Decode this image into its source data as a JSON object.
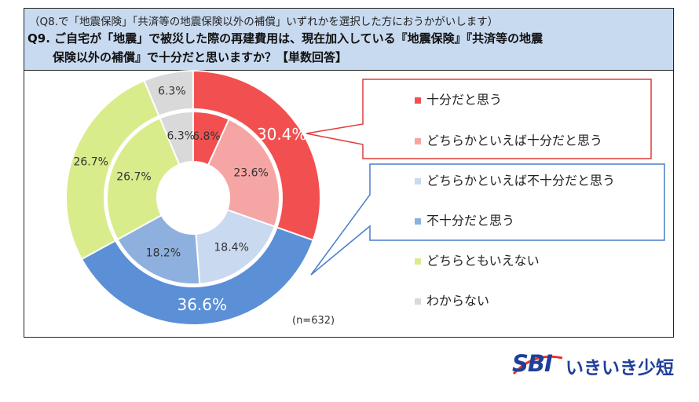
{
  "header": {
    "subtitle": "（Q8.で「地震保険」「共済等の地震保険以外の補償」いずれかを選択した方におうかがいします）",
    "question_line1": "Q9. ご自宅が「地震」で被災した際の再建費用は、現在加入している『地震保険』『共済等の地震",
    "question_line2": "保険以外の補償』で十分だと思いますか？【単数回答】"
  },
  "chart_data": {
    "type": "pie",
    "variant": "nested-donut",
    "n_label": "(n=632)",
    "legend": [
      {
        "label": "十分だと思う",
        "color": "#f25050"
      },
      {
        "label": "どちらかといえば十分だと思う",
        "color": "#f6a5a5"
      },
      {
        "label": "どちらかといえば不十分だと思う",
        "color": "#c9d9f0"
      },
      {
        "label": "不十分だと思う",
        "color": "#8eb0de"
      },
      {
        "label": "どちらともいえない",
        "color": "#d9ec8c"
      },
      {
        "label": "わからない",
        "color": "#d9d9d9"
      }
    ],
    "outer_ring": [
      {
        "value": 30.4,
        "label": "30.4%",
        "color": "#f25050"
      },
      {
        "value": 36.6,
        "label": "36.6%",
        "color": "#5b8fd6"
      },
      {
        "value": 26.7,
        "label": "26.7%",
        "color": "#d9ec8c"
      },
      {
        "value": 6.3,
        "label": "6.3%",
        "color": "#d9d9d9"
      }
    ],
    "inner_ring": [
      {
        "value": 6.8,
        "label": "6.8%",
        "color": "#f25050"
      },
      {
        "value": 23.6,
        "label": "23.6%",
        "color": "#f6a5a5"
      },
      {
        "value": 18.4,
        "label": "18.4%",
        "color": "#c9d9f0"
      },
      {
        "value": 18.2,
        "label": "18.2%",
        "color": "#8eb0de"
      },
      {
        "value": 26.7,
        "label": "26.7%",
        "color": "#d9ec8c"
      },
      {
        "value": 6.3,
        "label": "6.3%",
        "color": "#d9d9d9"
      }
    ]
  },
  "logo": {
    "sbi": "SBI",
    "name": "いきいき少短",
    "color": "#1f3f9a"
  }
}
